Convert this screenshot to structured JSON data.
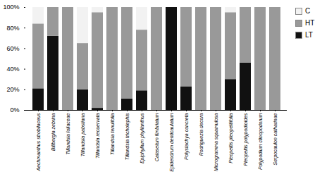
{
  "chart_data": {
    "type": "bar",
    "stacked": true,
    "categories": [
      "Aechmanthus strobilaceus",
      "Billbergia zebrina",
      "Tillandsia loliaceae",
      "Tillandsia pabstiana",
      "Tillandsia recuervata",
      "Tillandsia tenuifolia",
      "Tillandsia tricholephis",
      "Epiphyllum phyllanthus",
      "Catasetum fimbriatum",
      "Epidendrum denticaulatum",
      "Polystachya concreta",
      "Rodriguezia decora",
      "Microgramma squamulosa",
      "Pleopeltis pleopeltifolia",
      "Pleopeltis polypodioides",
      "Polypodium clinopodorum",
      "Serpocaulon catharinae"
    ],
    "series": [
      {
        "name": "LT",
        "color": "#111111",
        "values": [
          21,
          72,
          0,
          20,
          2,
          0,
          11,
          19,
          0,
          100,
          23,
          0,
          0,
          30,
          46,
          0,
          0
        ]
      },
      {
        "name": "HT",
        "color": "#999999",
        "values": [
          63,
          28,
          100,
          45,
          93,
          100,
          89,
          59,
          100,
          0,
          77,
          100,
          100,
          65,
          54,
          100,
          100
        ]
      },
      {
        "name": "C",
        "color": "#f2f2f2",
        "values": [
          16,
          0,
          0,
          35,
          5,
          0,
          0,
          22,
          0,
          0,
          0,
          0,
          0,
          5,
          0,
          0,
          0
        ]
      }
    ],
    "ylim": [
      0,
      100
    ],
    "yticks": [
      {
        "value": 0,
        "label": "0%"
      },
      {
        "value": 20,
        "label": "20%"
      },
      {
        "value": 40,
        "label": "40%"
      },
      {
        "value": 60,
        "label": "60%"
      },
      {
        "value": 80,
        "label": "80%"
      },
      {
        "value": 100,
        "label": "100%"
      }
    ],
    "grid": false,
    "legend": "right"
  }
}
